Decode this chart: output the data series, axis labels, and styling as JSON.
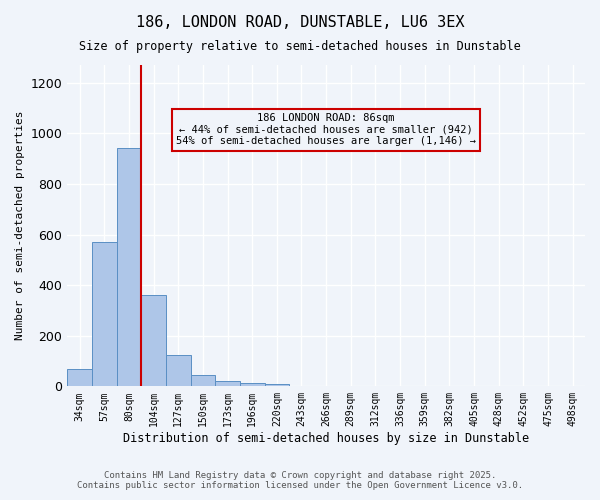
{
  "title1": "186, LONDON ROAD, DUNSTABLE, LU6 3EX",
  "title2": "Size of property relative to semi-detached houses in Dunstable",
  "xlabel": "Distribution of semi-detached houses by size in Dunstable",
  "ylabel": "Number of semi-detached properties",
  "footer1": "Contains HM Land Registry data © Crown copyright and database right 2025.",
  "footer2": "Contains public sector information licensed under the Open Government Licence v3.0.",
  "categories": [
    "34sqm",
    "57sqm",
    "80sqm",
    "104sqm",
    "127sqm",
    "150sqm",
    "173sqm",
    "196sqm",
    "220sqm",
    "243sqm",
    "266sqm",
    "289sqm",
    "312sqm",
    "336sqm",
    "359sqm",
    "382sqm",
    "405sqm",
    "428sqm",
    "452sqm",
    "475sqm",
    "498sqm"
  ],
  "values": [
    70,
    570,
    940,
    360,
    125,
    45,
    20,
    15,
    8,
    0,
    0,
    0,
    0,
    0,
    0,
    0,
    0,
    0,
    0,
    0,
    0
  ],
  "bar_color": "#aec6e8",
  "bar_edgecolor": "#5a8fc4",
  "highlight_index": 2,
  "redline_x": 2.5,
  "annotation_title": "186 LONDON ROAD: 86sqm",
  "annotation_line1": "← 44% of semi-detached houses are smaller (942)",
  "annotation_line2": "54% of semi-detached houses are larger (1,146) →",
  "annotation_box_edgecolor": "#cc0000",
  "redline_color": "#cc0000",
  "ylim": [
    0,
    1270
  ],
  "yticks": [
    0,
    200,
    400,
    600,
    800,
    1000,
    1200
  ],
  "background_color": "#f0f4fa",
  "plot_bg_color": "#f0f4fa",
  "grid_color": "#ffffff"
}
